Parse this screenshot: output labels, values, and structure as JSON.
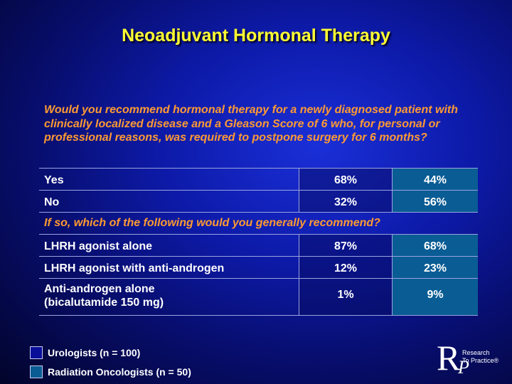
{
  "title": "Neoadjuvant Hormonal Therapy",
  "question": "Would you recommend hormonal therapy for a newly diagnosed patient with clinically localized disease and a Gleason Score of 6 who, for personal or professional reasons, was required to postpone surgery for 6 months?",
  "rows": [
    {
      "label": "Yes",
      "urologists": "68%",
      "radiation": "44%"
    },
    {
      "label": "No",
      "urologists": "32%",
      "radiation": "56%"
    }
  ],
  "subquestion": "If so, which of the following would you generally recommend?",
  "rows2": [
    {
      "label": "LHRH agonist alone",
      "urologists": "87%",
      "radiation": "68%"
    },
    {
      "label": "LHRH agonist with anti-androgen",
      "urologists": "12%",
      "radiation": "23%"
    },
    {
      "label_line1": "Anti-androgen alone",
      "label_line2": "(bicalutamide 150 mg)",
      "urologists": "1%",
      "radiation": "9%"
    }
  ],
  "legend": [
    {
      "label": "Urologists  (n = 100)",
      "color": "#0a0f9a"
    },
    {
      "label": "Radiation Oncologists  (n = 50)",
      "color": "#0a5c94"
    }
  ],
  "logo": {
    "r": "R",
    "p": "P",
    "line1": "Research",
    "line2": "To Practice®"
  },
  "colors": {
    "title": "#ffff33",
    "question": "#ff9a33",
    "radiation_cell": "#0a5c94"
  }
}
